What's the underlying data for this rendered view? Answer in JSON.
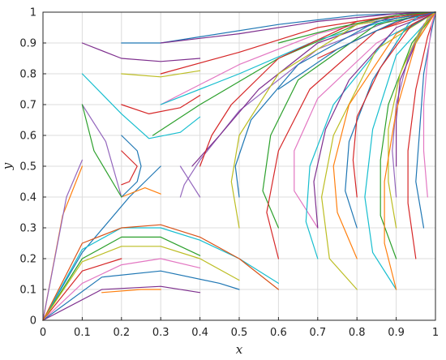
{
  "chart_data": {
    "type": "line",
    "title": "",
    "xlabel": "x",
    "ylabel": "y",
    "xlim": [
      0,
      1
    ],
    "ylim": [
      0,
      1
    ],
    "xticks": [
      "0",
      "0.1",
      "0.2",
      "0.3",
      "0.4",
      "0.5",
      "0.6",
      "0.7",
      "0.8",
      "0.9",
      "1"
    ],
    "yticks": [
      "0",
      "0.1",
      "0.2",
      "0.3",
      "0.4",
      "0.5",
      "0.6",
      "0.7",
      "0.8",
      "0.9",
      "1"
    ],
    "grid": true,
    "legend": false,
    "series": [
      {
        "color": "#ff7f0e",
        "x": [
          0,
          0.05,
          0.1
        ],
        "y": [
          0,
          0.34,
          0.5
        ]
      },
      {
        "color": "#9467bd",
        "x": [
          0,
          0.06,
          0.1
        ],
        "y": [
          0,
          0.4,
          0.52
        ]
      },
      {
        "color": "#1f77b4",
        "x": [
          0,
          0.1,
          0.22,
          0.3
        ],
        "y": [
          0,
          0.22,
          0.4,
          0.5
        ]
      },
      {
        "color": "#ff7f0e",
        "x": [
          0.2,
          0.26,
          0.3
        ],
        "y": [
          0.4,
          0.43,
          0.41
        ]
      },
      {
        "color": "#2ca02c",
        "x": [
          0,
          0.1,
          0.2,
          0.3,
          0.4
        ],
        "y": [
          0,
          0.2,
          0.27,
          0.27,
          0.21
        ]
      },
      {
        "color": "#d62728",
        "x": [
          0,
          0.1,
          0.2
        ],
        "y": [
          0,
          0.16,
          0.2
        ]
      },
      {
        "color": "#17becf",
        "x": [
          0,
          0.1,
          0.2,
          0.3,
          0.4,
          0.5,
          0.6
        ],
        "y": [
          0,
          0.23,
          0.3,
          0.3,
          0.26,
          0.2,
          0.12
        ]
      },
      {
        "color": "#e377c2",
        "x": [
          0,
          0.1,
          0.2,
          0.3,
          0.4
        ],
        "y": [
          0,
          0.12,
          0.18,
          0.2,
          0.17
        ]
      },
      {
        "color": "#1f77b4",
        "x": [
          0,
          0.15,
          0.3,
          0.45,
          0.5
        ],
        "y": [
          0,
          0.14,
          0.16,
          0.12,
          0.1
        ]
      },
      {
        "color": "#7e2f8e",
        "x": [
          0,
          0.15,
          0.3,
          0.4
        ],
        "y": [
          0,
          0.1,
          0.11,
          0.09
        ]
      },
      {
        "color": "#bcbd22",
        "x": [
          0,
          0.1,
          0.2,
          0.3,
          0.4,
          0.5
        ],
        "y": [
          0,
          0.19,
          0.24,
          0.24,
          0.2,
          0.13
        ]
      },
      {
        "color": "#d95319",
        "x": [
          0,
          0.1,
          0.2,
          0.3,
          0.4,
          0.5,
          0.6
        ],
        "y": [
          0,
          0.25,
          0.3,
          0.31,
          0.27,
          0.2,
          0.1
        ]
      },
      {
        "color": "#ff7f0e",
        "x": [
          0.15,
          0.25,
          0.3
        ],
        "y": [
          0.09,
          0.1,
          0.1
        ]
      },
      {
        "color": "#9467bd",
        "x": [
          0.1,
          0.16,
          0.2
        ],
        "y": [
          0.7,
          0.58,
          0.4
        ]
      },
      {
        "color": "#1f77b4",
        "x": [
          0.2,
          0.24,
          0.25,
          0.24,
          0.2
        ],
        "y": [
          0.6,
          0.55,
          0.5,
          0.45,
          0.4
        ]
      },
      {
        "color": "#d62728",
        "x": [
          0.2,
          0.24,
          0.22,
          0.2
        ],
        "y": [
          0.55,
          0.5,
          0.45,
          0.44
        ]
      },
      {
        "color": "#17becf",
        "x": [
          0.1,
          0.2,
          0.27,
          0.35,
          0.4
        ],
        "y": [
          0.8,
          0.67,
          0.59,
          0.61,
          0.66
        ]
      },
      {
        "color": "#2ca02c",
        "x": [
          0.1,
          0.13,
          0.2
        ],
        "y": [
          0.7,
          0.55,
          0.4
        ]
      },
      {
        "color": "#d62728",
        "x": [
          0.2,
          0.27,
          0.35,
          0.4
        ],
        "y": [
          0.7,
          0.67,
          0.69,
          0.73
        ]
      },
      {
        "color": "#7e2f8e",
        "x": [
          0.1,
          0.2,
          0.3,
          0.4
        ],
        "y": [
          0.9,
          0.85,
          0.84,
          0.85
        ]
      },
      {
        "color": "#bcbd22",
        "x": [
          0.2,
          0.3,
          0.4
        ],
        "y": [
          0.8,
          0.79,
          0.81
        ]
      },
      {
        "color": "#1f77b4",
        "x": [
          0.2,
          0.3,
          0.4,
          0.6,
          0.8,
          1
        ],
        "y": [
          0.9,
          0.9,
          0.92,
          0.96,
          0.99,
          1
        ]
      },
      {
        "color": "#2ca02c",
        "x": [
          0.28,
          0.4,
          0.6,
          0.8,
          1
        ],
        "y": [
          0.6,
          0.7,
          0.85,
          0.96,
          1
        ]
      },
      {
        "color": "#e377c2",
        "x": [
          0.3,
          0.5,
          0.7,
          0.9,
          1
        ],
        "y": [
          0.7,
          0.83,
          0.93,
          0.99,
          1
        ]
      },
      {
        "color": "#d62728",
        "x": [
          0.3,
          0.5,
          0.7,
          0.9,
          1
        ],
        "y": [
          0.8,
          0.87,
          0.95,
          0.99,
          1
        ]
      },
      {
        "color": "#7e2f8e",
        "x": [
          0.3,
          0.5,
          0.7,
          0.9,
          1
        ],
        "y": [
          0.9,
          0.93,
          0.97,
          0.995,
          1
        ]
      },
      {
        "color": "#17becf",
        "x": [
          0.3,
          0.5,
          0.7,
          0.9,
          1
        ],
        "y": [
          0.7,
          0.8,
          0.91,
          0.98,
          1
        ]
      },
      {
        "color": "#9467bd",
        "x": [
          0.4,
          0.37,
          0.35
        ],
        "y": [
          0.4,
          0.46,
          0.5
        ]
      },
      {
        "color": "#9467bd",
        "x": [
          0.35,
          0.36,
          0.4,
          0.5,
          0.7,
          0.9,
          1
        ],
        "y": [
          0.4,
          0.44,
          0.52,
          0.68,
          0.88,
          0.98,
          1
        ]
      },
      {
        "color": "#7e2f8e",
        "x": [
          0.38,
          0.45,
          0.55,
          0.7,
          0.9,
          1
        ],
        "y": [
          0.5,
          0.6,
          0.75,
          0.9,
          0.99,
          1
        ]
      },
      {
        "color": "#d62728",
        "x": [
          0.4,
          0.43,
          0.48,
          0.6,
          0.8,
          1
        ],
        "y": [
          0.5,
          0.6,
          0.7,
          0.85,
          0.97,
          1
        ]
      },
      {
        "color": "#bcbd22",
        "x": [
          0.5,
          0.48,
          0.5,
          0.6,
          0.8,
          1
        ],
        "y": [
          0.3,
          0.45,
          0.6,
          0.8,
          0.96,
          1
        ]
      },
      {
        "color": "#1f77b4",
        "x": [
          0.5,
          0.49,
          0.53,
          0.65,
          0.85,
          1
        ],
        "y": [
          0.4,
          0.5,
          0.65,
          0.83,
          0.97,
          1
        ]
      },
      {
        "color": "#2ca02c",
        "x": [
          0.6,
          0.56,
          0.58,
          0.65,
          0.85,
          1
        ],
        "y": [
          0.3,
          0.42,
          0.6,
          0.78,
          0.96,
          1
        ]
      },
      {
        "color": "#d62728",
        "x": [
          0.6,
          0.57,
          0.6,
          0.68,
          0.85,
          1
        ],
        "y": [
          0.2,
          0.35,
          0.55,
          0.75,
          0.94,
          1
        ]
      },
      {
        "color": "#e377c2",
        "x": [
          0.7,
          0.64,
          0.64,
          0.7,
          0.85,
          1
        ],
        "y": [
          0.3,
          0.42,
          0.55,
          0.72,
          0.9,
          1
        ]
      },
      {
        "color": "#17becf",
        "x": [
          0.7,
          0.67,
          0.68,
          0.74,
          0.88,
          1
        ],
        "y": [
          0.2,
          0.32,
          0.5,
          0.7,
          0.92,
          1
        ]
      },
      {
        "color": "#bcbd22",
        "x": [
          0.8,
          0.73,
          0.71,
          0.74,
          0.85,
          1
        ],
        "y": [
          0.1,
          0.2,
          0.4,
          0.6,
          0.88,
          1
        ]
      },
      {
        "color": "#7e2f8e",
        "x": [
          0.7,
          0.69,
          0.72,
          0.78,
          0.9,
          1
        ],
        "y": [
          0.3,
          0.45,
          0.62,
          0.78,
          0.95,
          1
        ]
      },
      {
        "color": "#ff7f0e",
        "x": [
          0.8,
          0.75,
          0.74,
          0.78,
          0.9,
          1
        ],
        "y": [
          0.2,
          0.35,
          0.5,
          0.7,
          0.93,
          1
        ]
      },
      {
        "color": "#1f77b4",
        "x": [
          0.8,
          0.77,
          0.78,
          0.84,
          0.92,
          1
        ],
        "y": [
          0.3,
          0.42,
          0.58,
          0.78,
          0.94,
          1
        ]
      },
      {
        "color": "#d62728",
        "x": [
          0.8,
          0.79,
          0.8,
          0.86,
          0.94,
          1
        ],
        "y": [
          0.4,
          0.52,
          0.66,
          0.82,
          0.96,
          1
        ]
      },
      {
        "color": "#17becf",
        "x": [
          0.9,
          0.84,
          0.82,
          0.84,
          0.9,
          1
        ],
        "y": [
          0.1,
          0.22,
          0.4,
          0.62,
          0.86,
          1
        ]
      },
      {
        "color": "#2ca02c",
        "x": [
          0.9,
          0.86,
          0.86,
          0.88,
          0.94,
          1
        ],
        "y": [
          0.2,
          0.34,
          0.52,
          0.7,
          0.9,
          1
        ]
      },
      {
        "color": "#bcbd22",
        "x": [
          0.9,
          0.88,
          0.88,
          0.91,
          0.96,
          1
        ],
        "y": [
          0.3,
          0.45,
          0.62,
          0.8,
          0.94,
          1
        ]
      },
      {
        "color": "#9467bd",
        "x": [
          0.9,
          0.89,
          0.9,
          0.93,
          0.97,
          1
        ],
        "y": [
          0.4,
          0.55,
          0.7,
          0.85,
          0.96,
          1
        ]
      },
      {
        "color": "#7e2f8e",
        "x": [
          0.9,
          0.9,
          0.91,
          0.95,
          1
        ],
        "y": [
          0.5,
          0.65,
          0.78,
          0.9,
          1
        ]
      },
      {
        "color": "#ff7f0e",
        "x": [
          0.9,
          0.87,
          0.87,
          0.9,
          0.95,
          1
        ],
        "y": [
          0.1,
          0.25,
          0.45,
          0.68,
          0.9,
          1
        ]
      },
      {
        "color": "#d62728",
        "x": [
          0.95,
          0.93,
          0.93,
          0.95,
          0.98,
          1
        ],
        "y": [
          0.2,
          0.38,
          0.55,
          0.75,
          0.92,
          1
        ]
      },
      {
        "color": "#1f77b4",
        "x": [
          0.97,
          0.95,
          0.96,
          0.97,
          0.99,
          1
        ],
        "y": [
          0.3,
          0.45,
          0.62,
          0.8,
          0.94,
          1
        ]
      },
      {
        "color": "#e377c2",
        "x": [
          0.98,
          0.97,
          0.97,
          0.98,
          0.99,
          1
        ],
        "y": [
          0.4,
          0.55,
          0.7,
          0.85,
          0.96,
          1
        ]
      },
      {
        "color": "#17becf",
        "x": [
          0.9,
          0.93,
          0.96,
          1
        ],
        "y": [
          0.9,
          0.96,
          0.99,
          1
        ]
      },
      {
        "color": "#bcbd22",
        "x": [
          0.95,
          0.98,
          1
        ],
        "y": [
          0.9,
          0.98,
          1
        ]
      },
      {
        "color": "#2ca02c",
        "x": [
          0.6,
          0.75,
          0.9,
          1
        ],
        "y": [
          0.9,
          0.95,
          0.99,
          1
        ]
      },
      {
        "color": "#d62728",
        "x": [
          0.7,
          0.85,
          0.95,
          1
        ],
        "y": [
          0.85,
          0.94,
          0.99,
          1
        ]
      },
      {
        "color": "#1f77b4",
        "x": [
          0.6,
          0.75,
          0.9,
          1
        ],
        "y": [
          0.75,
          0.88,
          0.97,
          1
        ]
      }
    ]
  }
}
